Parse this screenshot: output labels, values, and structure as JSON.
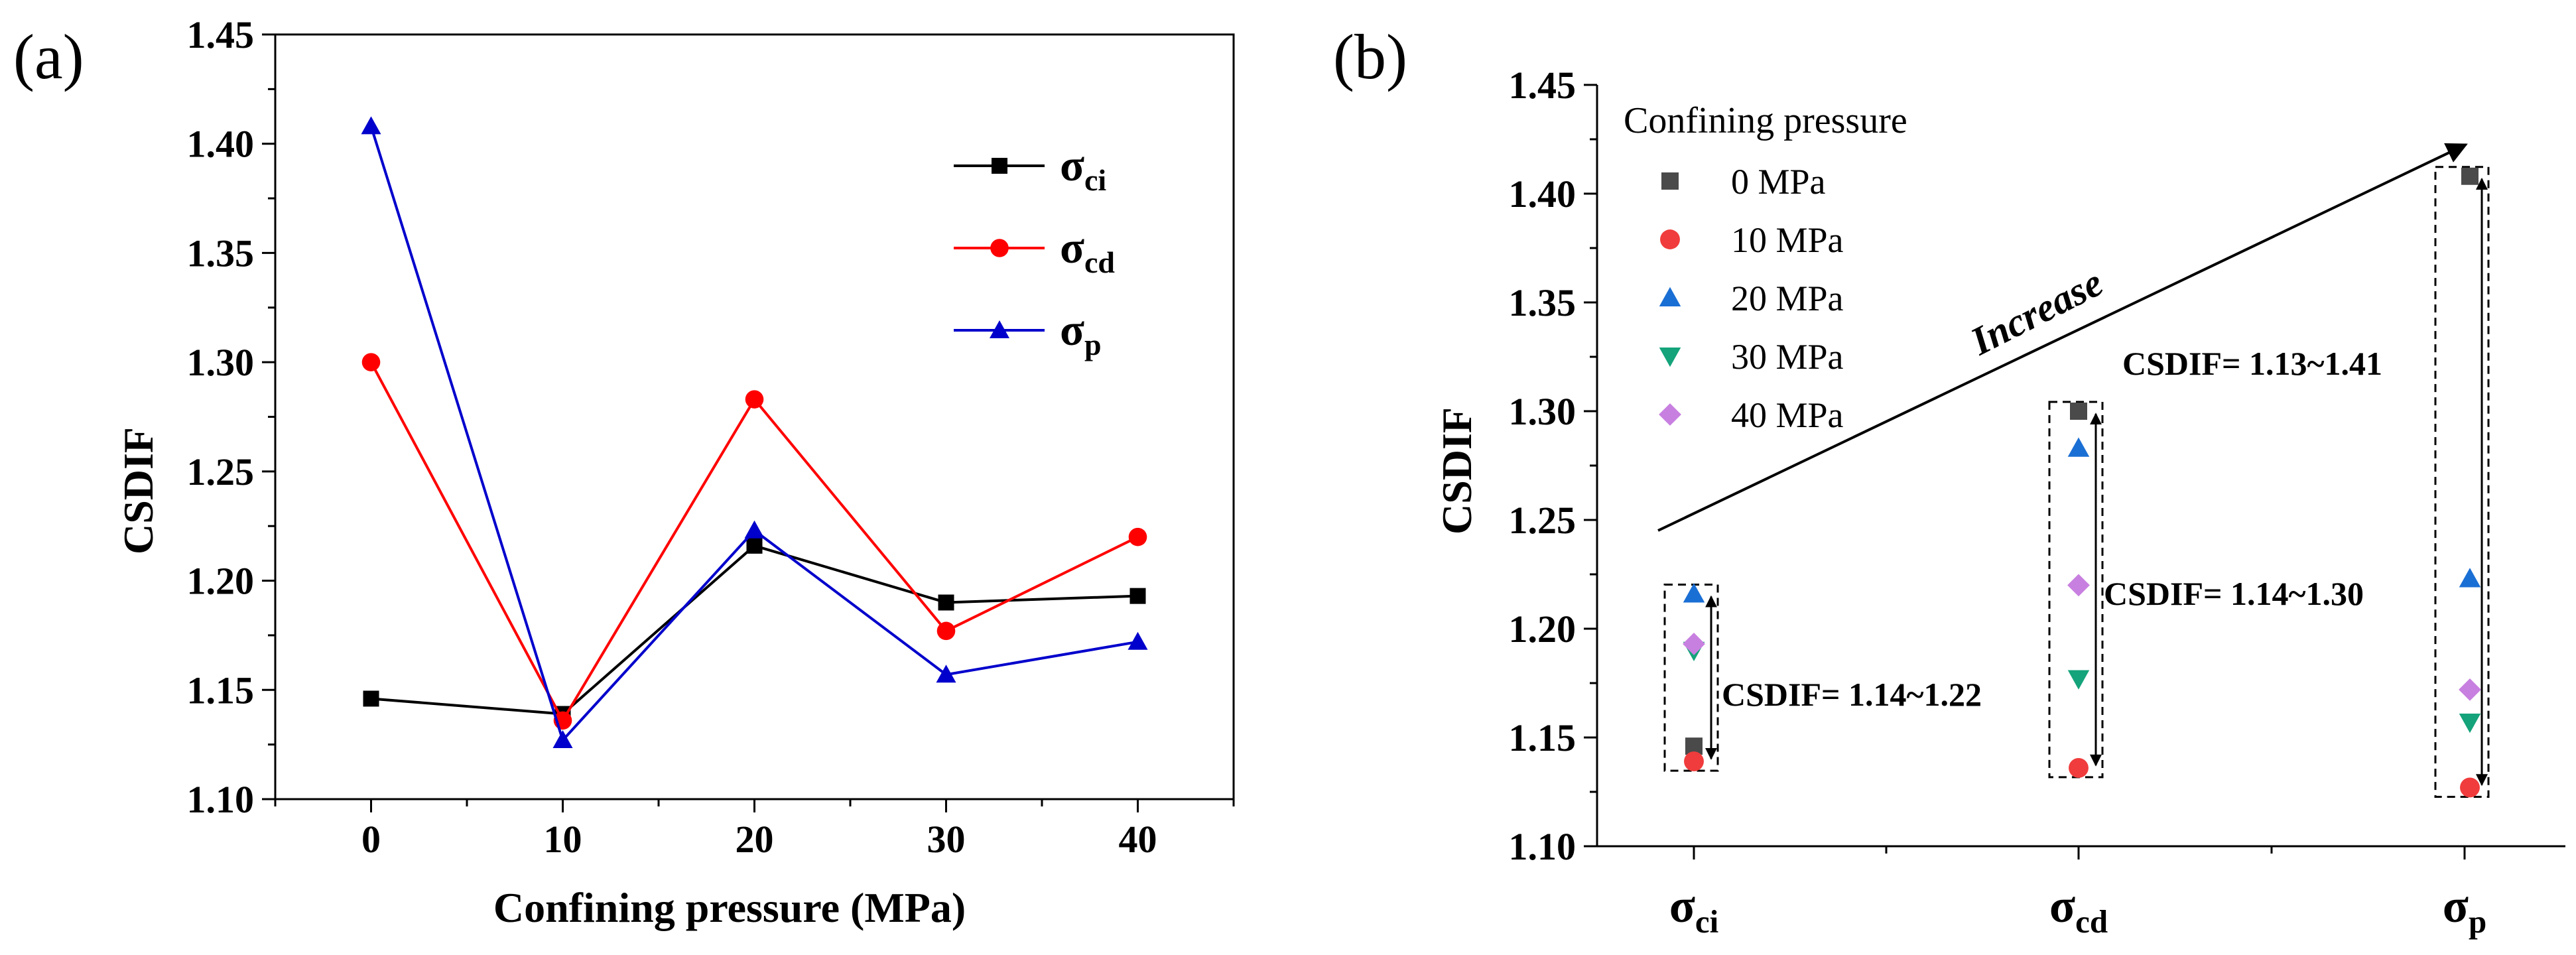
{
  "chart_data": [
    {
      "panel_label": "(a)",
      "type": "line",
      "xlabel": "Confining pressure (MPa)",
      "ylabel": "CSDIF",
      "x": [
        0,
        10,
        20,
        30,
        40
      ],
      "xlim": [
        -5,
        45
      ],
      "ylim": [
        1.1,
        1.45
      ],
      "xticks": [
        "0",
        "10",
        "20",
        "30",
        "40"
      ],
      "yticks": [
        "1.10",
        "1.15",
        "1.20",
        "1.25",
        "1.30",
        "1.35",
        "1.40",
        "1.45"
      ],
      "series": [
        {
          "name": "σ",
          "sub": "ci",
          "color": "#000000",
          "marker": "square",
          "values": [
            1.146,
            1.139,
            1.216,
            1.19,
            1.193
          ]
        },
        {
          "name": "σ",
          "sub": "cd",
          "color": "#ff0000",
          "marker": "circle",
          "values": [
            1.3,
            1.136,
            1.283,
            1.177,
            1.22
          ]
        },
        {
          "name": "σ",
          "sub": "p",
          "color": "#0000cc",
          "marker": "triangle",
          "values": [
            1.408,
            1.127,
            1.223,
            1.157,
            1.172
          ]
        }
      ]
    },
    {
      "panel_label": "(b)",
      "type": "scatter",
      "ylabel": "CSDIF",
      "ylim": [
        1.1,
        1.45
      ],
      "yticks": [
        "1.10",
        "1.15",
        "1.20",
        "1.25",
        "1.30",
        "1.35",
        "1.40",
        "1.45"
      ],
      "categories": [
        {
          "name": "σ",
          "sub": "ci"
        },
        {
          "name": "σ",
          "sub": "cd"
        },
        {
          "name": "σ",
          "sub": "p"
        }
      ],
      "legend_title": "Confining pressure",
      "series": [
        {
          "name": "0 MPa",
          "color": "#4a4a4a",
          "marker": "square",
          "values": [
            1.146,
            1.3,
            1.408
          ]
        },
        {
          "name": "10 MPa",
          "color": "#f03c3c",
          "marker": "circle",
          "values": [
            1.139,
            1.136,
            1.127
          ]
        },
        {
          "name": "20 MPa",
          "color": "#1a6fd4",
          "marker": "triangle",
          "values": [
            1.216,
            1.283,
            1.223
          ]
        },
        {
          "name": "30 MPa",
          "color": "#14a37a",
          "marker": "triangle-down",
          "values": [
            1.19,
            1.177,
            1.157
          ]
        },
        {
          "name": "40 MPa",
          "color": "#c880e0",
          "marker": "diamond",
          "values": [
            1.193,
            1.22,
            1.172
          ]
        }
      ],
      "ranges": [
        {
          "label": "CSDIF= 1.14~1.22",
          "low": 1.139,
          "high": 1.216
        },
        {
          "label": "CSDIF= 1.14~1.30",
          "low": 1.136,
          "high": 1.3
        },
        {
          "label": "CSDIF= 1.13~1.41",
          "low": 1.127,
          "high": 1.408
        }
      ],
      "trend_annotation": "Increase"
    }
  ]
}
